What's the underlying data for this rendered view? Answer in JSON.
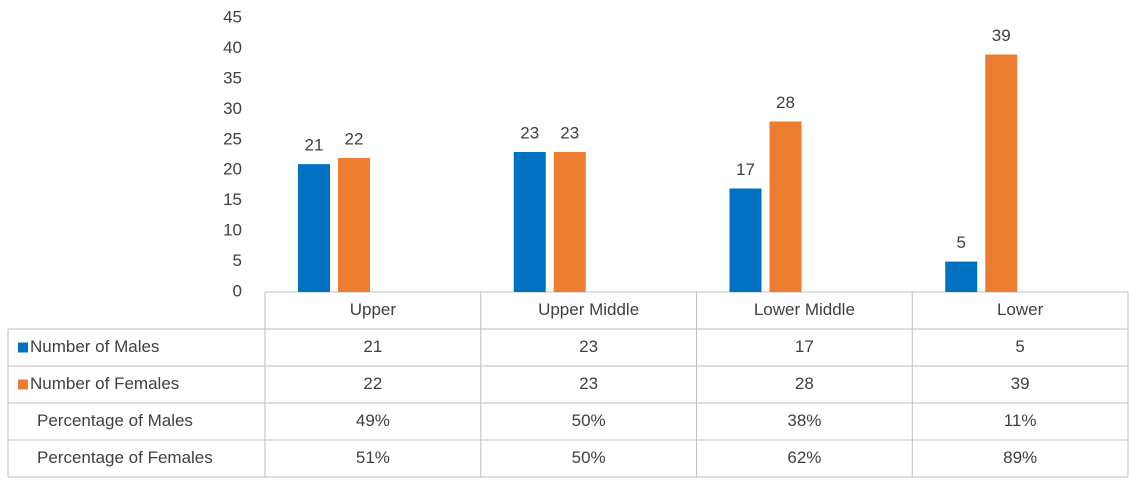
{
  "chart_data": {
    "type": "bar",
    "categories": [
      "Upper",
      "Upper Middle",
      "Lower Middle",
      "Lower"
    ],
    "series": [
      {
        "name": "Number of Males",
        "color": "#0070c0",
        "values": [
          21,
          23,
          17,
          5
        ]
      },
      {
        "name": "Number of Females",
        "color": "#ed7d31",
        "values": [
          22,
          23,
          28,
          39
        ]
      },
      {
        "name": "Percentage of Males",
        "values": [
          49,
          50,
          38,
          11
        ],
        "value_labels": [
          "49%",
          "50%",
          "38%",
          "11%"
        ]
      },
      {
        "name": "Percentage of Females",
        "values": [
          51,
          50,
          62,
          89
        ],
        "value_labels": [
          "51%",
          "50%",
          "62%",
          "89%"
        ]
      }
    ],
    "ylim": [
      0,
      45
    ],
    "yticks": [
      0,
      5,
      10,
      15,
      20,
      25,
      30,
      35,
      40,
      45
    ],
    "grid": false
  }
}
